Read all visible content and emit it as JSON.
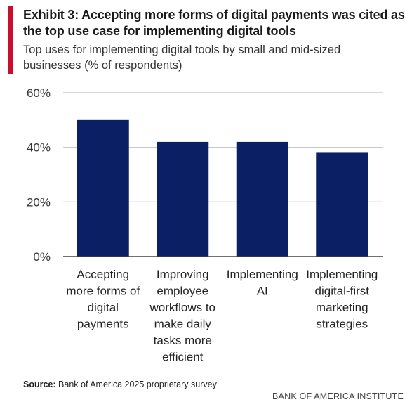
{
  "header": {
    "title": "Exhibit 3: Accepting more forms of digital payments was cited as the top use case for implementing digital tools",
    "subtitle": "Top uses for implementing digital tools by small and mid-sized businesses (% of respondents)"
  },
  "footer": {
    "source_label": "Source:",
    "source_text": "Bank of America 2025 proprietary survey",
    "brand": "BANK OF AMERICA INSTITUTE"
  },
  "colors": {
    "bar": "#0b1f64",
    "accent": "#c8102e",
    "grid": "#c0c0c0",
    "axis": "#404040"
  },
  "chart_data": {
    "type": "bar",
    "categories": [
      [
        "Accepting",
        "more forms of",
        "digital",
        "payments"
      ],
      [
        "Improving",
        "employee",
        "workflows to",
        "make daily",
        "tasks more",
        "efficient"
      ],
      [
        "Implementing",
        "AI"
      ],
      [
        "Implementing",
        "digital-first",
        "marketing",
        "strategies"
      ]
    ],
    "values": [
      50,
      42,
      42,
      38
    ],
    "ylim": [
      0,
      60
    ],
    "yticks": [
      0,
      20,
      40,
      60
    ],
    "ytick_labels": [
      "0%",
      "20%",
      "40%",
      "60%"
    ],
    "grid": true,
    "legend": "none"
  }
}
